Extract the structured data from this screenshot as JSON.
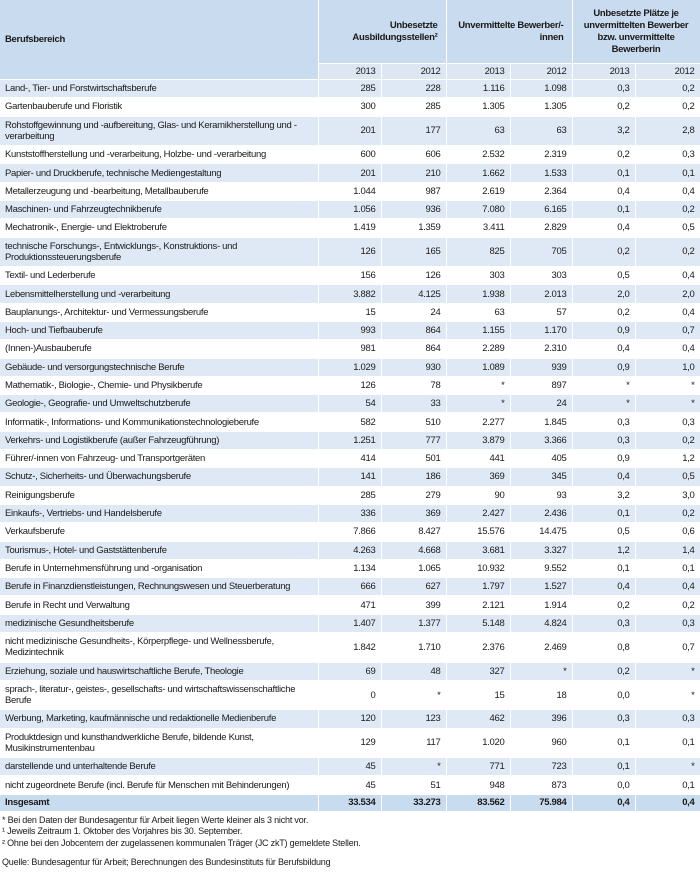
{
  "header": {
    "first": "Berufsbereich",
    "groups": [
      "Unbesetzte Ausbildungsstellen²",
      "Unvermittelte Bewerber/-innen",
      "Unbesetzte Plätze je unvermittelten Bewerber bzw. unvermittelte Bewerberin"
    ],
    "years": [
      "2013",
      "2012",
      "2013",
      "2012",
      "2013",
      "2012"
    ]
  },
  "rows": [
    {
      "label": "Land-, Tier- und Forstwirtschaftsberufe",
      "values": [
        "285",
        "228",
        "1.116",
        "1.098",
        "0,3",
        "0,2"
      ]
    },
    {
      "label": "Gartenbauberufe und Floristik",
      "values": [
        "300",
        "285",
        "1.305",
        "1.305",
        "0,2",
        "0,2"
      ]
    },
    {
      "label": "Rohstoffgewinnung und -aufbereitung, Glas- und Keramikherstellung und -verarbeitung",
      "values": [
        "201",
        "177",
        "63",
        "63",
        "3,2",
        "2,8"
      ]
    },
    {
      "label": "Kunststoffherstellung und -verarbeitung, Holzbe- und -verarbeitung",
      "values": [
        "600",
        "606",
        "2.532",
        "2.319",
        "0,2",
        "0,3"
      ]
    },
    {
      "label": "Papier- und Druckberufe, technische Mediengestaltung",
      "values": [
        "201",
        "210",
        "1.662",
        "1.533",
        "0,1",
        "0,1"
      ]
    },
    {
      "label": "Metallerzeugung und -bearbeitung, Metallbauberufe",
      "values": [
        "1.044",
        "987",
        "2.619",
        "2.364",
        "0,4",
        "0,4"
      ]
    },
    {
      "label": "Maschinen- und Fahrzeugtechnikberufe",
      "values": [
        "1.056",
        "936",
        "7.080",
        "6.165",
        "0,1",
        "0,2"
      ]
    },
    {
      "label": "Mechatronik-, Energie- und Elektroberufe",
      "values": [
        "1.419",
        "1.359",
        "3.411",
        "2.829",
        "0,4",
        "0,5"
      ]
    },
    {
      "label": "technische Forschungs-, Entwicklungs-, Konstruktions- und Produktionssteuerungsberufe",
      "values": [
        "126",
        "165",
        "825",
        "705",
        "0,2",
        "0,2"
      ]
    },
    {
      "label": "Textil- und Lederberufe",
      "values": [
        "156",
        "126",
        "303",
        "303",
        "0,5",
        "0,4"
      ]
    },
    {
      "label": "Lebensmittelherstellung und -verarbeitung",
      "values": [
        "3.882",
        "4.125",
        "1.938",
        "2.013",
        "2,0",
        "2,0"
      ]
    },
    {
      "label": "Bauplanungs-, Architektur- und Vermessungsberufe",
      "values": [
        "15",
        "24",
        "63",
        "57",
        "0,2",
        "0,4"
      ]
    },
    {
      "label": "Hoch- und Tiefbauberufe",
      "values": [
        "993",
        "864",
        "1.155",
        "1.170",
        "0,9",
        "0,7"
      ]
    },
    {
      "label": "(Innen-)Ausbauberufe",
      "values": [
        "981",
        "864",
        "2.289",
        "2.310",
        "0,4",
        "0,4"
      ]
    },
    {
      "label": "Gebäude- und versorgungstechnische Berufe",
      "values": [
        "1.029",
        "930",
        "1.089",
        "939",
        "0,9",
        "1,0"
      ]
    },
    {
      "label": "Mathematik-, Biologie-, Chemie- und Physikberufe",
      "values": [
        "126",
        "78",
        "*",
        "897",
        "*",
        "*"
      ]
    },
    {
      "label": "Geologie-, Geografie- und Umweltschutzberufe",
      "values": [
        "54",
        "33",
        "*",
        "24",
        "*",
        "*"
      ]
    },
    {
      "label": "Informatik-, Informations- und Kommunikationstechnologieberufe",
      "values": [
        "582",
        "510",
        "2.277",
        "1.845",
        "0,3",
        "0,3"
      ]
    },
    {
      "label": "Verkehrs- und Logistikberufe (außer Fahrzeugführung)",
      "values": [
        "1.251",
        "777",
        "3.879",
        "3.366",
        "0,3",
        "0,2"
      ]
    },
    {
      "label": "Führer/-innen von Fahrzeug- und Transportgeräten",
      "values": [
        "414",
        "501",
        "441",
        "405",
        "0,9",
        "1,2"
      ]
    },
    {
      "label": "Schutz-, Sicherheits- und Überwachungsberufe",
      "values": [
        "141",
        "186",
        "369",
        "345",
        "0,4",
        "0,5"
      ]
    },
    {
      "label": "Reinigungsberufe",
      "values": [
        "285",
        "279",
        "90",
        "93",
        "3,2",
        "3,0"
      ]
    },
    {
      "label": "Einkaufs-, Vertriebs- und Handelsberufe",
      "values": [
        "336",
        "369",
        "2.427",
        "2.436",
        "0,1",
        "0,2"
      ]
    },
    {
      "label": "Verkaufsberufe",
      "values": [
        "7.866",
        "8.427",
        "15.576",
        "14.475",
        "0,5",
        "0,6"
      ]
    },
    {
      "label": "Tourismus-, Hotel- und Gaststättenberufe",
      "values": [
        "4.263",
        "4.668",
        "3.681",
        "3.327",
        "1,2",
        "1,4"
      ]
    },
    {
      "label": "Berufe in Unternehmensführung und -organisation",
      "values": [
        "1.134",
        "1.065",
        "10.932",
        "9.552",
        "0,1",
        "0,1"
      ]
    },
    {
      "label": "Berufe in Finanzdienstleistungen, Rechnungswesen und Steuerberatung",
      "values": [
        "666",
        "627",
        "1.797",
        "1.527",
        "0,4",
        "0,4"
      ]
    },
    {
      "label": "Berufe in Recht und Verwaltung",
      "values": [
        "471",
        "399",
        "2.121",
        "1.914",
        "0,2",
        "0,2"
      ]
    },
    {
      "label": "medizinische Gesundheitsberufe",
      "values": [
        "1.407",
        "1.377",
        "5.148",
        "4.824",
        "0,3",
        "0,3"
      ]
    },
    {
      "label": "nicht medizinische Gesundheits-, Körperpflege- und Wellnessberufe, Medizintechnik",
      "values": [
        "1.842",
        "1.710",
        "2.376",
        "2.469",
        "0,8",
        "0,7"
      ]
    },
    {
      "label": "Erziehung, soziale und hauswirtschaftliche Berufe, Theologie",
      "values": [
        "69",
        "48",
        "327",
        "*",
        "0,2",
        "*"
      ]
    },
    {
      "label": "sprach-, literatur-, geistes-, gesellschafts- und wirtschaftswissenschaftliche Berufe",
      "values": [
        "0",
        "*",
        "15",
        "18",
        "0,0",
        "*"
      ]
    },
    {
      "label": "Werbung, Marketing, kaufmännische und redaktionelle Medienberufe",
      "values": [
        "120",
        "123",
        "462",
        "396",
        "0,3",
        "0,3"
      ]
    },
    {
      "label": "Produktdesign und kunsthandwerkliche Berufe, bildende Kunst, Musikinstrumentenbau",
      "values": [
        "129",
        "117",
        "1.020",
        "960",
        "0,1",
        "0,1"
      ]
    },
    {
      "label": "darstellende und unterhaltende Berufe",
      "values": [
        "45",
        "*",
        "771",
        "723",
        "0,1",
        "*"
      ]
    },
    {
      "label": "nicht zugeordnete Berufe (incl. Berufe für Menschen mit Behinderungen)",
      "values": [
        "45",
        "51",
        "948",
        "873",
        "0,0",
        "0,1"
      ]
    }
  ],
  "total": {
    "label": "Insgesamt",
    "values": [
      "33.534",
      "33.273",
      "83.562",
      "75.984",
      "0,4",
      "0,4"
    ]
  },
  "footnotes": [
    "* Bei den Daten der Bundesagentur für Arbeit liegen Werte kleiner als 3 nicht vor.",
    "¹ Jeweils Zeitraum 1. Oktober des Vorjahres bis 30. September.",
    "² Ohne bei den Jobcentern der zugelassenen kommunalen Träger (JC zkT) gemeldete Stellen."
  ],
  "source": "Quelle: Bundesagentur für Arbeit; Berechnungen des Bundesinstituts für Berufsbildung"
}
